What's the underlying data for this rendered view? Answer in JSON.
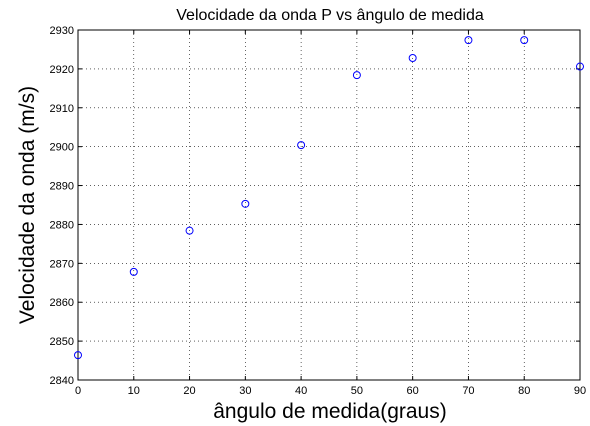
{
  "chart_data": {
    "type": "scatter",
    "title": "Velocidade da onda P vs ângulo de medida",
    "xlabel": "ângulo de medida(graus)",
    "ylabel": "Velocidade da onda (m/s)",
    "x": [
      0,
      10,
      20,
      30,
      40,
      50,
      60,
      70,
      80,
      90
    ],
    "values": [
      2846.4,
      2867.8,
      2878.4,
      2885.3,
      2900.4,
      2918.4,
      2922.8,
      2927.4,
      2927.4,
      2920.6
    ],
    "color": "#0000ff",
    "xlim": [
      0,
      90
    ],
    "xticks": [
      0,
      10,
      20,
      30,
      40,
      50,
      60,
      70,
      80,
      90
    ],
    "ylim": [
      2840,
      2930
    ],
    "yticks": [
      2840,
      2850,
      2860,
      2870,
      2880,
      2890,
      2900,
      2910,
      2920,
      2930
    ],
    "grid": true
  }
}
